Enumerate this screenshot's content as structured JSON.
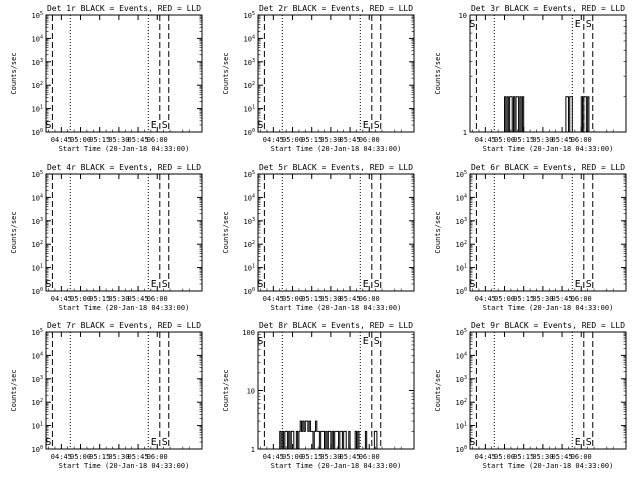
{
  "chart_data": [
    {
      "title": "Det 1r BLACK = Events, RED = LLD",
      "ylabel": "Counts/sec",
      "xlabel": "Start Time (20-Jan-18 04:33:00)",
      "type": "line",
      "y_scale": "log",
      "ylim": [
        1,
        100000
      ],
      "yticks": [
        "10^0",
        "10^1",
        "10^2",
        "10^3",
        "10^4",
        "10^5"
      ],
      "xticks": [
        "04:45",
        "05:00",
        "05:15",
        "05:30",
        "05:45",
        "06:00"
      ],
      "markers": [
        "S",
        "E",
        "S"
      ],
      "series": []
    },
    {
      "title": "Det 2r BLACK = Events, RED = LLD",
      "ylabel": "Counts/sec",
      "xlabel": "Start Time (20-Jan-18 04:33:00)",
      "type": "line",
      "y_scale": "log",
      "ylim": [
        1,
        100000
      ],
      "yticks": [
        "10^0",
        "10^1",
        "10^2",
        "10^3",
        "10^4",
        "10^5"
      ],
      "xticks": [
        "04:45",
        "05:00",
        "05:15",
        "05:30",
        "05:45",
        "06:00"
      ],
      "markers": [
        "S",
        "E",
        "S"
      ],
      "series": []
    },
    {
      "title": "Det 3r BLACK = Events, RED = LLD",
      "ylabel": "Counts/sec",
      "xlabel": "Start Time (20-Jan-18 04:33:00)",
      "type": "line",
      "y_scale": "log",
      "ylim": [
        1,
        10
      ],
      "yticks": [
        "1",
        "10"
      ],
      "xticks": [
        "04:45",
        "05:00",
        "05:15",
        "05:30",
        "05:45",
        "06:00"
      ],
      "markers": [
        "S",
        "E",
        "S"
      ],
      "series": [
        {
          "x": [
            "04:53",
            "04:54",
            "04:55",
            "04:56",
            "04:57",
            "04:58",
            "04:59",
            "05:00",
            "05:01",
            "05:02",
            "05:03",
            "05:04",
            "05:05",
            "05:06",
            "05:07",
            "05:08",
            "05:09",
            "05:10",
            "05:11",
            "05:12",
            "05:13",
            "05:14",
            "05:15",
            "05:16",
            "05:17",
            "05:18",
            "05:19",
            "05:20",
            "05:21",
            "05:22",
            "05:23",
            "05:24",
            "05:25",
            "05:26",
            "05:27",
            "05:28",
            "05:29",
            "05:30",
            "05:31",
            "05:32",
            "05:33",
            "05:34",
            "05:35",
            "05:36",
            "05:37",
            "05:38",
            "05:39",
            "05:40",
            "05:41",
            "05:42",
            "05:43",
            "05:44",
            "05:45",
            "05:46",
            "05:47",
            "05:48",
            "05:49",
            "05:50",
            "05:51",
            "05:52",
            "05:53",
            "05:54",
            "05:55",
            "05:56",
            "05:57",
            "05:58",
            "05:59",
            "06:00",
            "06:01",
            "06:02",
            "06:03",
            "06:04",
            "06:05",
            "06:06",
            "06:07",
            "06:08",
            "06:09",
            "06:10",
            "06:11",
            "06:12",
            "06:13",
            "06:14",
            "06:15",
            "06:16",
            "06:17",
            "06:18",
            "06:19",
            "06:20",
            "06:21",
            "06:22",
            "06:23",
            "06:24",
            "06:25"
          ],
          "y": [
            1,
            1,
            1,
            1,
            1,
            1,
            1,
            2,
            1,
            2,
            1,
            2,
            2,
            1,
            2,
            1,
            2,
            2,
            1,
            2,
            1,
            2,
            1,
            1,
            1,
            1,
            1,
            1,
            1,
            1,
            1,
            1,
            1,
            1,
            1,
            1,
            1,
            1,
            1,
            1,
            1,
            1,
            1,
            1,
            1,
            1,
            1,
            1,
            1,
            1,
            1,
            1,
            1,
            1,
            1,
            2,
            2,
            1,
            2,
            2,
            1,
            1,
            1,
            1,
            1,
            1,
            1,
            2,
            1,
            2,
            2,
            1,
            2,
            1,
            1,
            1,
            1,
            1,
            1,
            1,
            1,
            1,
            1,
            1,
            1,
            1,
            1,
            1,
            1,
            1,
            1,
            1,
            1
          ]
        }
      ]
    },
    {
      "title": "Det 4r BLACK = Events, RED = LLD",
      "ylabel": "Counts/sec",
      "xlabel": "Start Time (20-Jan-18 04:33:00)",
      "type": "line",
      "y_scale": "log",
      "ylim": [
        1,
        100000
      ],
      "yticks": [
        "10^0",
        "10^1",
        "10^2",
        "10^3",
        "10^4",
        "10^5"
      ],
      "xticks": [
        "04:45",
        "05:00",
        "05:15",
        "05:30",
        "05:45",
        "06:00"
      ],
      "markers": [
        "S",
        "E",
        "S"
      ],
      "series": []
    },
    {
      "title": "Det 5r BLACK = Events, RED = LLD",
      "ylabel": "Counts/sec",
      "xlabel": "Start Time (20-Jan-18 04:33:00)",
      "type": "line",
      "y_scale": "log",
      "ylim": [
        1,
        100000
      ],
      "yticks": [
        "10^0",
        "10^1",
        "10^2",
        "10^3",
        "10^4",
        "10^5"
      ],
      "xticks": [
        "04:45",
        "05:00",
        "05:15",
        "05:30",
        "05:45",
        "06:00"
      ],
      "markers": [
        "S",
        "E",
        "S"
      ],
      "series": []
    },
    {
      "title": "Det 6r BLACK = Events, RED = LLD",
      "ylabel": "Counts/sec",
      "xlabel": "Start Time (20-Jan-18 04:33:00)",
      "type": "line",
      "y_scale": "log",
      "ylim": [
        1,
        100000
      ],
      "yticks": [
        "10^0",
        "10^1",
        "10^2",
        "10^3",
        "10^4",
        "10^5"
      ],
      "xticks": [
        "04:45",
        "05:00",
        "05:15",
        "05:30",
        "05:45",
        "06:00"
      ],
      "markers": [
        "S",
        "E",
        "S"
      ],
      "series": []
    },
    {
      "title": "Det 7r BLACK = Events, RED = LLD",
      "ylabel": "Counts/sec",
      "xlabel": "Start Time (20-Jan-18 04:33:00)",
      "type": "line",
      "y_scale": "log",
      "ylim": [
        1,
        100000
      ],
      "yticks": [
        "10^0",
        "10^1",
        "10^2",
        "10^3",
        "10^4",
        "10^5"
      ],
      "xticks": [
        "04:45",
        "05:00",
        "05:15",
        "05:30",
        "05:45",
        "06:00"
      ],
      "markers": [
        "S",
        "E",
        "S"
      ],
      "series": []
    },
    {
      "title": "Det 8r BLACK = Events, RED = LLD",
      "ylabel": "Counts/sec",
      "xlabel": "Start Time (20-Jan-18 04:33:00)",
      "type": "line",
      "y_scale": "log",
      "ylim": [
        1,
        100
      ],
      "yticks": [
        "1",
        "10",
        "100"
      ],
      "xticks": [
        "04:45",
        "05:00",
        "05:15",
        "05:30",
        "05:45",
        "06:00"
      ],
      "markers": [
        "S",
        "E",
        "S"
      ],
      "series": [
        {
          "x": [
            "04:46",
            "04:47",
            "04:48",
            "04:49",
            "04:50",
            "04:51",
            "04:52",
            "04:53",
            "04:54",
            "04:55",
            "04:56",
            "04:57",
            "04:58",
            "04:59",
            "05:00",
            "05:01",
            "05:02",
            "05:03",
            "05:04",
            "05:05",
            "05:06",
            "05:07",
            "05:08",
            "05:09",
            "05:10",
            "05:11",
            "05:12",
            "05:13",
            "05:14",
            "05:15",
            "05:16",
            "05:17",
            "05:18",
            "05:19",
            "05:20",
            "05:21",
            "05:22",
            "05:23",
            "05:24",
            "05:25",
            "05:26",
            "05:27",
            "05:28",
            "05:29",
            "05:30",
            "05:31",
            "05:32",
            "05:33",
            "05:34",
            "05:35",
            "05:36",
            "05:37",
            "05:38",
            "05:39",
            "05:40",
            "05:41",
            "05:42",
            "05:43",
            "05:44",
            "05:45",
            "05:46",
            "05:47",
            "05:48",
            "05:49",
            "05:50",
            "05:51",
            "05:52",
            "05:53",
            "05:54",
            "05:55",
            "05:56",
            "05:57",
            "05:58",
            "05:59",
            "06:00",
            "06:01",
            "06:02",
            "06:03",
            "06:04",
            "06:05",
            "06:06",
            "06:07",
            "06:08",
            "06:09",
            "06:10",
            "06:11",
            "06:12",
            "06:13",
            "06:14",
            "06:15",
            "06:16",
            "06:17",
            "06:18",
            "06:19",
            "06:20",
            "06:21",
            "06:22",
            "06:23",
            "06:24",
            "06:25",
            "06:26",
            "06:27",
            "06:28",
            "06:29",
            "06:30",
            "06:31",
            "06:32",
            "06:33"
          ],
          "y": [
            1,
            1,
            1,
            1,
            2,
            1,
            2,
            1,
            2,
            2,
            1,
            2,
            1,
            2,
            2,
            1,
            1,
            2,
            1,
            2,
            3,
            2,
            3,
            2,
            3,
            3,
            2,
            3,
            2,
            2,
            1,
            2,
            3,
            2,
            2,
            1,
            2,
            2,
            2,
            1,
            2,
            1,
            2,
            2,
            1,
            2,
            1,
            2,
            2,
            2,
            1,
            2,
            2,
            1,
            2,
            2,
            1,
            1,
            2,
            1,
            1,
            1,
            1,
            2,
            1,
            2,
            1,
            1,
            1,
            1,
            1,
            2,
            1,
            1,
            1,
            1,
            1,
            1,
            2,
            2,
            1,
            1,
            1,
            1,
            1,
            1,
            1,
            1,
            1,
            1,
            1,
            1,
            1,
            1,
            1,
            1,
            1,
            1,
            1,
            1,
            1,
            1,
            1,
            1,
            1,
            1,
            1,
            1
          ]
        }
      ]
    },
    {
      "title": "Det 9r BLACK = Events, RED = LLD",
      "ylabel": "Counts/sec",
      "xlabel": "Start Time (20-Jan-18 04:33:00)",
      "type": "line",
      "y_scale": "log",
      "ylim": [
        1,
        100000
      ],
      "yticks": [
        "10^0",
        "10^1",
        "10^2",
        "10^3",
        "10^4",
        "10^5"
      ],
      "xticks": [
        "04:45",
        "05:00",
        "05:15",
        "05:30",
        "05:45",
        "06:00"
      ],
      "markers": [
        "S",
        "E",
        "S"
      ],
      "series": []
    }
  ]
}
